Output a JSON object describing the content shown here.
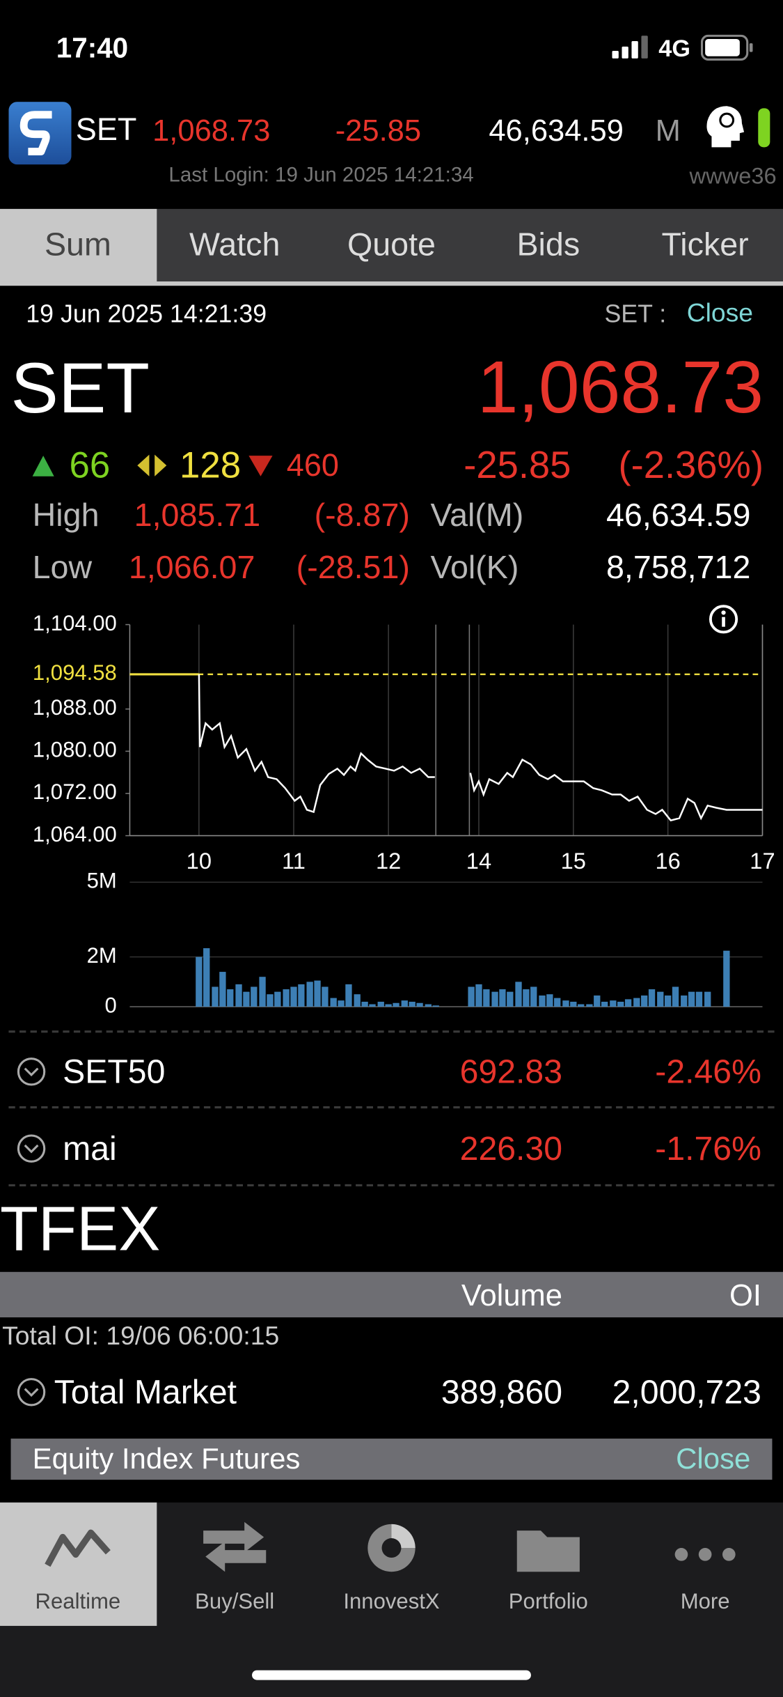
{
  "status": {
    "time": "17:40",
    "network": "4G"
  },
  "header": {
    "symbol": "SET",
    "last": "1,068.73",
    "change": "-25.85",
    "value": "46,634.59",
    "value_unit": "M",
    "last_login": "Last Login: 19 Jun 2025 14:21:34",
    "user": "wwwe36"
  },
  "tabs": [
    "Sum",
    "Watch",
    "Quote",
    "Bids",
    "Ticker"
  ],
  "summary": {
    "datetime": "19 Jun 2025 14:21:39",
    "market_label": "SET :",
    "market_status": "Close",
    "symbol": "SET",
    "last": "1,068.73",
    "advances": "66",
    "unchanged": "128",
    "declines": "460",
    "change": "-25.85",
    "percent_change": "(-2.36%)",
    "high_label": "High",
    "high": "1,085.71",
    "high_change": "(-8.87)",
    "low_label": "Low",
    "low": "1,066.07",
    "low_change": "(-28.51)",
    "value_label": "Val(M)",
    "value": "46,634.59",
    "volume_label": "Vol(K)",
    "volume": "8,758,712"
  },
  "chart_data": [
    {
      "type": "line",
      "xlim": [
        9.27,
        17
      ],
      "x_break": [
        12.5,
        13.9
      ],
      "xticks": [
        10,
        11,
        12,
        14,
        15,
        16,
        17
      ],
      "ylim": [
        1064,
        1104
      ],
      "yticks": [
        {
          "value": 1064,
          "label": "1,064.00"
        },
        {
          "value": 1072,
          "label": "1,072.00"
        },
        {
          "value": 1080,
          "label": "1,080.00"
        },
        {
          "value": 1088,
          "label": "1,088.00"
        },
        {
          "value": 1104,
          "label": "1,104.00"
        }
      ],
      "reference": {
        "value": 1094.58,
        "label": "1,094.58",
        "color": "#f0e040"
      },
      "series": [
        {
          "color": "#ffffff",
          "x": [
            10.0,
            10.01,
            10.07,
            10.14,
            10.22,
            10.27,
            10.34,
            10.41,
            10.5,
            10.59,
            10.66,
            10.73,
            10.82,
            10.91,
            11.01,
            11.07,
            11.14,
            11.21,
            11.28,
            11.37,
            11.46,
            11.53,
            11.6,
            11.65,
            11.71,
            11.78,
            11.87,
            11.97,
            12.06,
            12.15,
            12.24,
            12.33,
            12.42,
            12.49,
            null,
            13.91,
            13.95,
            14.0,
            14.05,
            14.11,
            14.21,
            14.3,
            14.36,
            14.46,
            14.55,
            14.64,
            14.73,
            14.8,
            14.89,
            15.0,
            15.11,
            15.21,
            15.3,
            15.41,
            15.5,
            15.59,
            15.68,
            15.78,
            15.87,
            15.94,
            16.03,
            16.12,
            16.21,
            16.28,
            16.35,
            16.42,
            16.51,
            16.62,
            16.83,
            17.0
          ],
          "values": [
            1094.58,
            1080.8,
            1085.3,
            1084.1,
            1085.3,
            1080.8,
            1082.9,
            1078.8,
            1080.4,
            1076.3,
            1078.0,
            1075.1,
            1074.7,
            1073.0,
            1070.6,
            1071.4,
            1068.9,
            1068.5,
            1073.6,
            1075.7,
            1076.7,
            1075.5,
            1077.1,
            1076.3,
            1079.6,
            1078.4,
            1077.1,
            1076.7,
            1076.3,
            1077.1,
            1075.9,
            1076.7,
            1075.1,
            1075.1,
            null,
            1075.9,
            1072.6,
            1074.3,
            1071.8,
            1074.7,
            1073.8,
            1075.9,
            1075.1,
            1078.4,
            1077.5,
            1075.5,
            1074.7,
            1075.5,
            1074.3,
            1074.3,
            1074.3,
            1073.0,
            1072.6,
            1071.8,
            1071.8,
            1070.6,
            1071.4,
            1068.9,
            1068.1,
            1068.9,
            1066.9,
            1067.3,
            1071.0,
            1070.2,
            1067.3,
            1069.7,
            1069.3,
            1068.9,
            1068.9,
            1068.9
          ]
        }
      ]
    },
    {
      "type": "bar",
      "xlim": [
        9.27,
        17
      ],
      "x_break": [
        12.5,
        13.9
      ],
      "ylim": [
        0,
        5000000
      ],
      "yticks": [
        0,
        {
          "value": 2000000,
          "label": "2M"
        },
        {
          "value": 5000000,
          "label": "5M"
        }
      ],
      "color": "#3d7fb5",
      "x": [
        10.0,
        10.08,
        10.17,
        10.25,
        10.33,
        10.42,
        10.5,
        10.58,
        10.67,
        10.75,
        10.83,
        10.92,
        11.0,
        11.08,
        11.17,
        11.25,
        11.33,
        11.42,
        11.5,
        11.58,
        11.67,
        11.75,
        11.83,
        11.92,
        12.0,
        12.08,
        12.17,
        12.25,
        12.33,
        12.42,
        12.5,
        13.92,
        14.0,
        14.08,
        14.17,
        14.25,
        14.33,
        14.42,
        14.5,
        14.58,
        14.67,
        14.75,
        14.83,
        14.92,
        15.0,
        15.08,
        15.17,
        15.25,
        15.33,
        15.42,
        15.5,
        15.58,
        15.67,
        15.75,
        15.83,
        15.92,
        16.0,
        16.08,
        16.17,
        16.25,
        16.33,
        16.42,
        16.62
      ],
      "values": [
        2000000,
        2350000,
        800000,
        1400000,
        700000,
        900000,
        600000,
        800000,
        1200000,
        500000,
        600000,
        700000,
        800000,
        900000,
        1000000,
        1050000,
        800000,
        350000,
        250000,
        900000,
        500000,
        200000,
        100000,
        200000,
        100000,
        150000,
        250000,
        200000,
        150000,
        100000,
        50000,
        800000,
        900000,
        700000,
        600000,
        700000,
        600000,
        1000000,
        700000,
        800000,
        450000,
        500000,
        350000,
        250000,
        200000,
        100000,
        100000,
        450000,
        200000,
        250000,
        200000,
        300000,
        350000,
        450000,
        700000,
        600000,
        450000,
        800000,
        450000,
        600000,
        600000,
        600000,
        2250000
      ]
    }
  ],
  "indices": [
    {
      "name": "SET50",
      "last": "692.83",
      "change": "-2.46%"
    },
    {
      "name": "mai",
      "last": "226.30",
      "change": "-1.76%"
    }
  ],
  "tfex": {
    "title": "TFEX",
    "columns": [
      "Volume",
      "OI"
    ],
    "total_oi": "Total OI: 19/06 06:00:15",
    "rows": [
      {
        "name": "Total Market",
        "volume": "389,860",
        "oi": "2,000,723"
      }
    ],
    "section": {
      "name": "Equity Index Futures",
      "status": "Close"
    }
  },
  "tab_bar": [
    "Realtime",
    "Buy/Sell",
    "InnovestX",
    "Portfolio",
    "More"
  ]
}
